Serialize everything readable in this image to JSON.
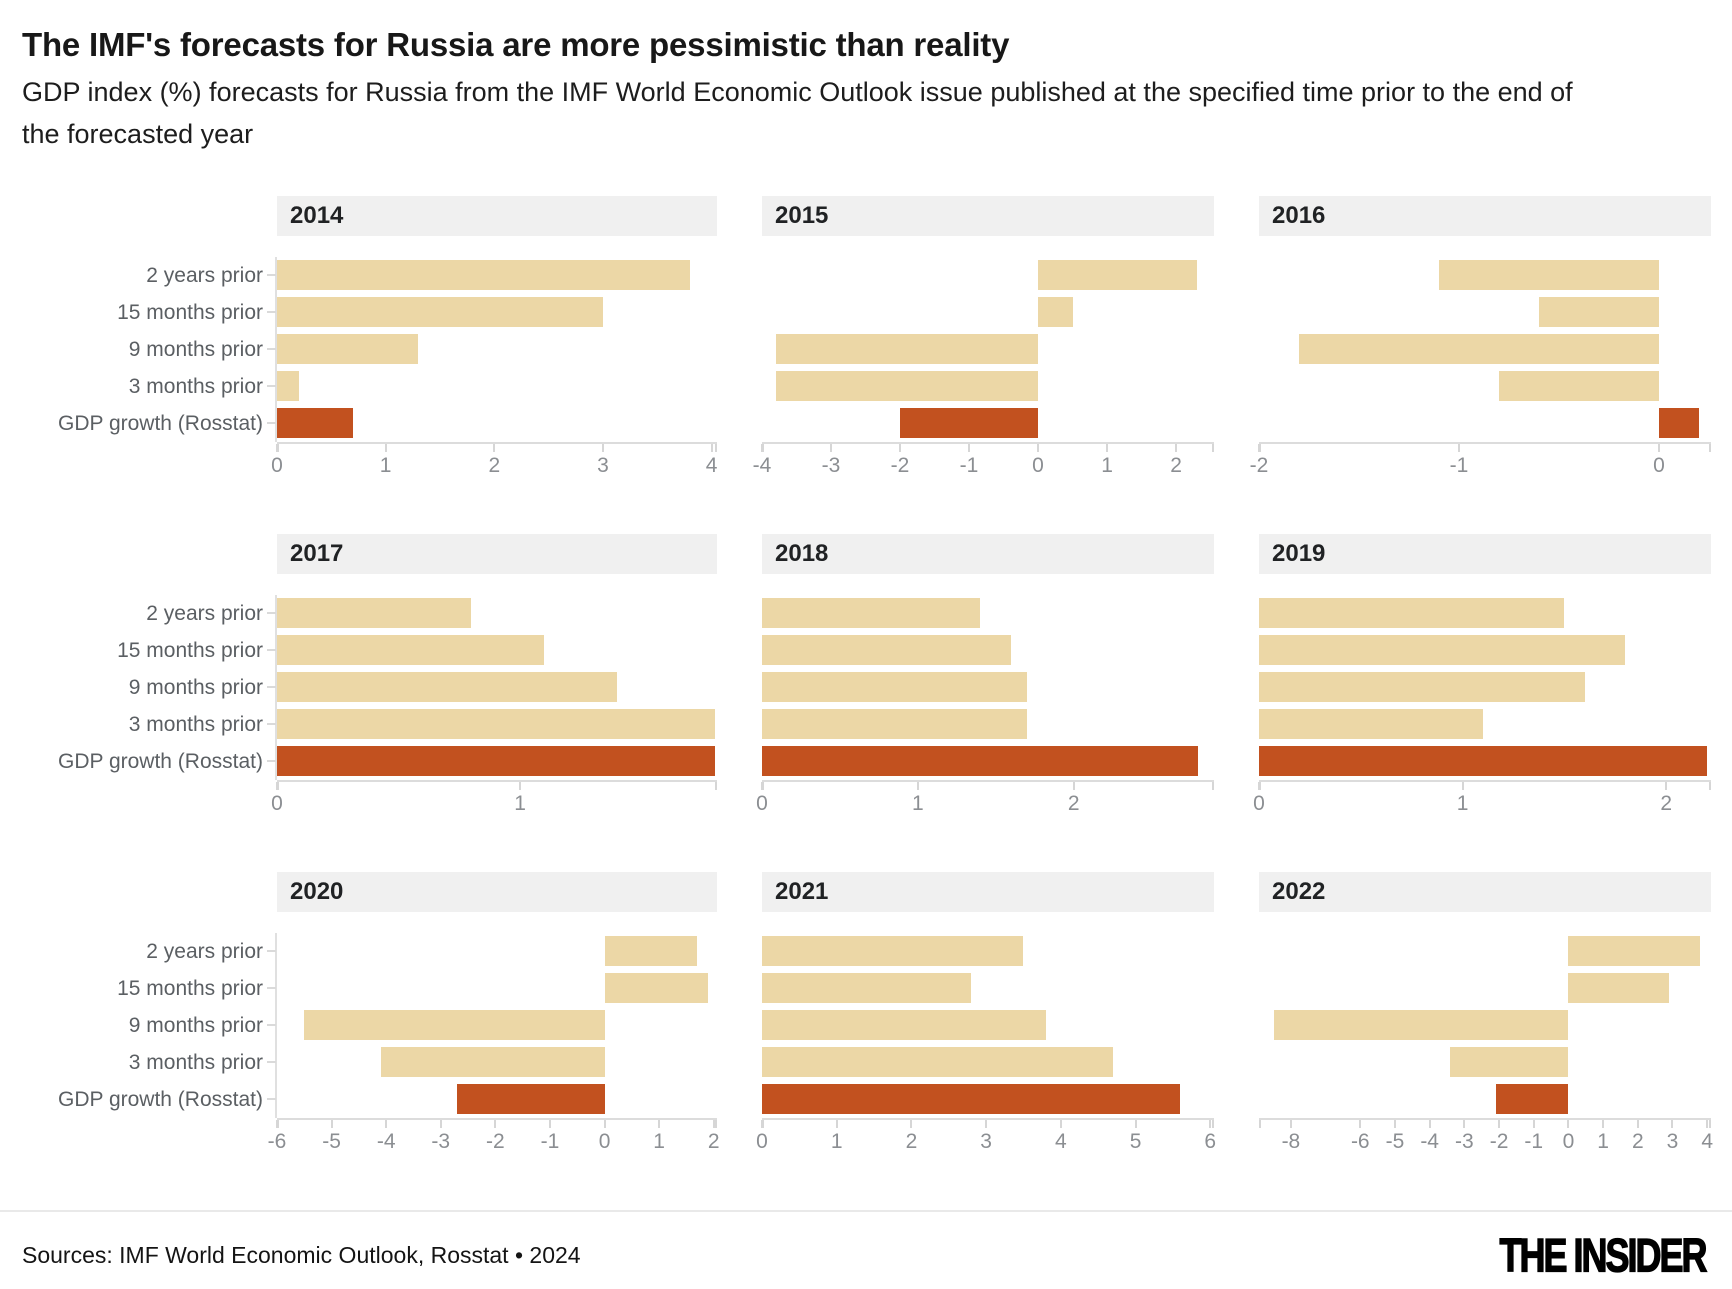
{
  "header": {
    "title": "The IMF's forecasts for Russia are more pessimistic than reality",
    "subtitle": "GDP index (%) forecasts for Russia from the IMF World Economic Outlook issue published at the specified time prior to the end of the forecasted year"
  },
  "footer": {
    "sources": "Sources: IMF World Economic Outlook, Rosstat • 2024",
    "logo": "THE INSIDER"
  },
  "colors": {
    "forecast_bar": "#ecd7a6",
    "actual_bar": "#c2511f",
    "panel_header_bg": "#f0f0f0",
    "axis_line": "#dcdcdc",
    "tick_label": "#8b8e92",
    "row_label": "#5b5f63"
  },
  "chart_data": {
    "type": "bar",
    "orientation": "horizontal",
    "categories": [
      "2 years prior",
      "15 months prior",
      "9 months prior",
      "3 months prior",
      "GDP growth (Rosstat)"
    ],
    "actual_series_index": 4,
    "legend": "none",
    "grid": "off",
    "panels": [
      {
        "year": "2014",
        "values": [
          3.8,
          3.0,
          1.3,
          0.2,
          0.7
        ],
        "xmin": 0,
        "xmax": 4.05,
        "ticks": [
          0,
          1,
          2,
          3,
          4
        ]
      },
      {
        "year": "2015",
        "values": [
          2.3,
          0.5,
          -3.8,
          -3.8,
          -2.0
        ],
        "xmin": -4,
        "xmax": 2.55,
        "ticks": [
          -4,
          -3,
          -2,
          -1,
          0,
          1,
          2
        ]
      },
      {
        "year": "2016",
        "values": [
          -1.1,
          -0.6,
          -1.8,
          -0.8,
          0.2
        ],
        "xmin": -2,
        "xmax": 0.26,
        "ticks": [
          -2,
          -1,
          0
        ]
      },
      {
        "year": "2017",
        "values": [
          0.8,
          1.1,
          1.4,
          1.8,
          1.8
        ],
        "xmin": 0,
        "xmax": 1.81,
        "ticks": [
          0,
          1
        ]
      },
      {
        "year": "2018",
        "values": [
          1.4,
          1.6,
          1.7,
          1.7,
          2.8
        ],
        "xmin": 0,
        "xmax": 2.9,
        "ticks": [
          0,
          1,
          2
        ]
      },
      {
        "year": "2019",
        "values": [
          1.5,
          1.8,
          1.6,
          1.1,
          2.2
        ],
        "xmin": 0,
        "xmax": 2.22,
        "ticks": [
          0,
          1,
          2
        ]
      },
      {
        "year": "2020",
        "values": [
          1.7,
          1.9,
          -5.5,
          -4.1,
          -2.7
        ],
        "xmin": -6,
        "xmax": 2.06,
        "ticks": [
          -6,
          -5,
          -4,
          -3,
          -2,
          -1,
          0,
          1,
          2
        ]
      },
      {
        "year": "2021",
        "values": [
          3.5,
          2.8,
          3.8,
          4.7,
          5.6
        ],
        "xmin": 0,
        "xmax": 6.05,
        "ticks": [
          0,
          1,
          2,
          3,
          4,
          5,
          6
        ]
      },
      {
        "year": "2022",
        "values": [
          3.8,
          2.9,
          -8.5,
          -3.4,
          -2.1
        ],
        "xmin": -8.92,
        "xmax": 4.11,
        "ticks": [
          -8,
          -6,
          -5,
          -4,
          -3,
          -2,
          -1,
          0,
          1,
          2,
          3,
          4
        ]
      }
    ]
  }
}
